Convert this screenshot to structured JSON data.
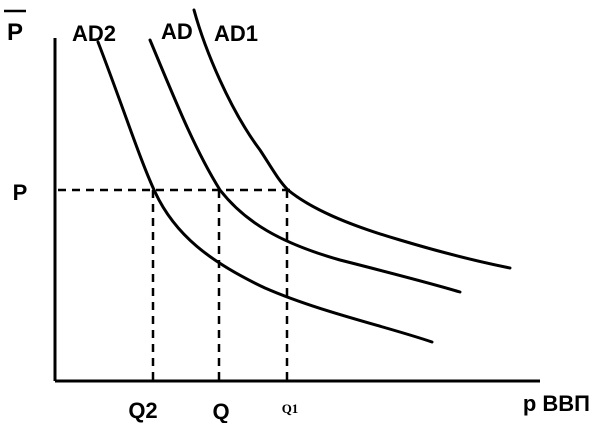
{
  "axes": {
    "y_label": "P",
    "x_label": "р ВВП"
  },
  "price_level": {
    "label": "P"
  },
  "curves": [
    {
      "label": "AD2"
    },
    {
      "label": "AD"
    },
    {
      "label": "AD1"
    }
  ],
  "quantities": [
    {
      "label": "Q2"
    },
    {
      "label": "Q"
    },
    {
      "label": "Q1"
    }
  ]
}
